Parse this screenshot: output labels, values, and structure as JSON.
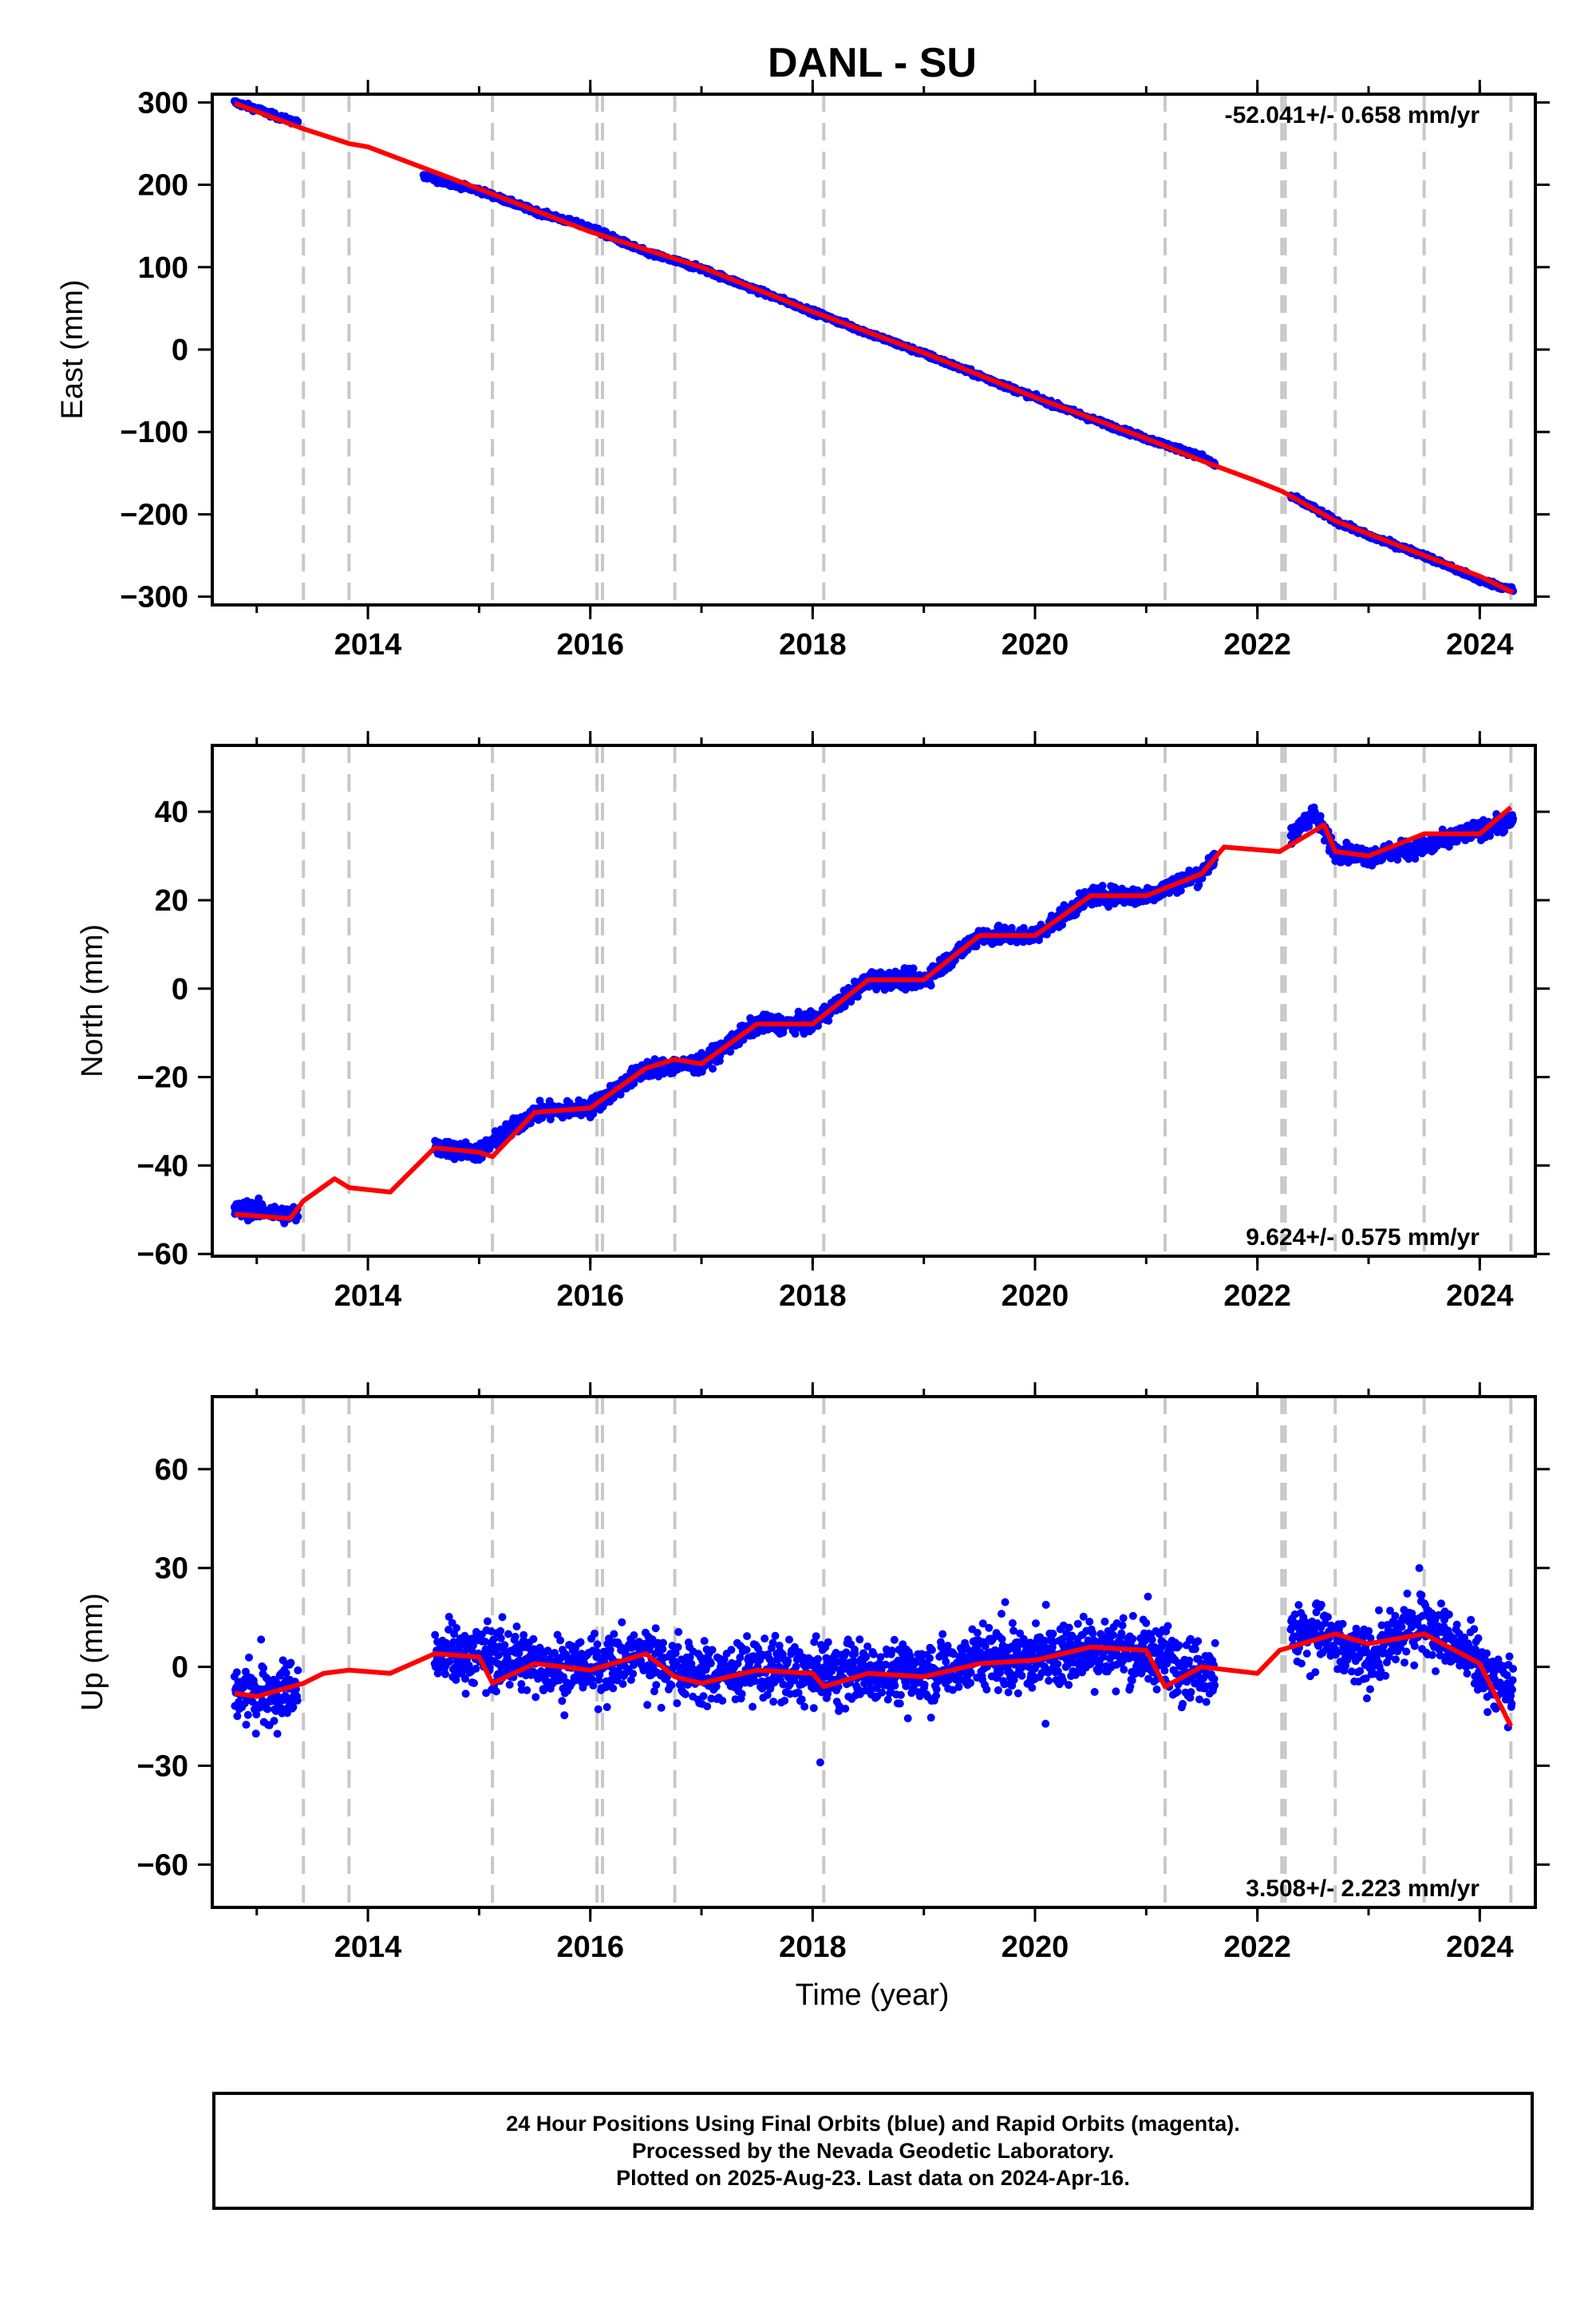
{
  "figure": {
    "title": "DANL - SU",
    "xlabel": "Time (year)",
    "footer": [
      "24 Hour Positions Using Final Orbits (blue) and Rapid Orbits (magenta).",
      "Processed by the Nevada Geodetic Laboratory.",
      "Plotted on 2025-Aug-23. Last data on 2024-Apr-16."
    ]
  },
  "colors": {
    "data": "#0000ff",
    "model": "#ff0000",
    "event_lines": "#c8c8c8",
    "axes": "#000000"
  },
  "chart_data": [
    {
      "type": "scatter",
      "component": "East",
      "ylabel": "East (mm)",
      "xlim": [
        2012.6,
        2024.5
      ],
      "ylim": [
        -310,
        310
      ],
      "xticks": [
        "2014",
        "2016",
        "2018",
        "2020",
        "2022",
        "2024"
      ],
      "yticks": [
        "300",
        "200",
        "100",
        "0",
        "−100",
        "−200",
        "−300"
      ],
      "rate_label": "-52.041+/- 0.658 mm/yr",
      "rate_position": "top-right",
      "event_lines": [
        2013.42,
        2013.83,
        2015.12,
        2016.06,
        2016.11,
        2016.76,
        2018.1,
        2021.17,
        2022.22,
        2022.25,
        2022.7,
        2023.5,
        2024.28
      ],
      "series": [
        {
          "name": "Final Orbits (blue)",
          "segments": [
            {
              "x": [
                2012.8,
                2013.0,
                2013.2,
                2013.37
              ],
              "y": [
                300,
                292,
                282,
                275
              ]
            },
            {
              "x": [
                2014.5,
                2015.0,
                2015.5,
                2016.0,
                2016.5,
                2017.0,
                2017.5,
                2018.0,
                2018.5,
                2019.0,
                2019.5,
                2020.0,
                2020.5,
                2021.0,
                2021.5,
                2021.62
              ],
              "y": [
                210,
                193,
                168,
                148,
                118,
                98,
                72,
                46,
                20,
                -5,
                -32,
                -58,
                -84,
                -108,
                -130,
                -140
              ]
            },
            {
              "x": [
                2022.3,
                2022.5,
                2022.7,
                2023.0,
                2023.5,
                2024.0,
                2024.3
              ],
              "y": [
                -178,
                -192,
                -208,
                -226,
                -250,
                -280,
                -292
              ]
            }
          ]
        },
        {
          "name": "model",
          "x": [
            2012.8,
            2013.42,
            2013.83,
            2014.0,
            2015.0,
            2016.0,
            2017.0,
            2018.0,
            2019.0,
            2020.0,
            2021.0,
            2021.5,
            2022.0,
            2022.22,
            2022.7,
            2023.5,
            2024.0,
            2024.3
          ],
          "y": [
            299,
            268,
            250,
            246,
            195,
            143,
            100,
            46,
            -4,
            -58,
            -108,
            -135,
            -160,
            -172,
            -208,
            -250,
            -275,
            -295
          ]
        }
      ]
    },
    {
      "type": "scatter",
      "component": "North",
      "ylabel": "North (mm)",
      "xlim": [
        2012.6,
        2024.5
      ],
      "ylim": [
        -60.5,
        55
      ],
      "xticks": [
        "2014",
        "2016",
        "2018",
        "2020",
        "2022",
        "2024"
      ],
      "yticks": [
        "40",
        "20",
        "0",
        "−20",
        "−40",
        "−60"
      ],
      "rate_label": "9.624+/- 0.575 mm/yr",
      "rate_position": "bottom-right",
      "event_lines": [
        2013.42,
        2013.83,
        2015.12,
        2016.06,
        2016.11,
        2016.76,
        2018.1,
        2021.17,
        2022.22,
        2022.25,
        2022.7,
        2023.5,
        2024.28
      ],
      "series": [
        {
          "name": "Final Orbits (blue)",
          "segments": [
            {
              "x": [
                2012.8,
                2013.0,
                2013.2,
                2013.37
              ],
              "y": [
                -50,
                -50,
                -51,
                -51
              ]
            },
            {
              "x": [
                2014.6,
                2015.0,
                2015.5,
                2016.0,
                2016.5,
                2017.0,
                2017.5,
                2018.0,
                2018.5,
                2019.0,
                2019.5,
                2020.0,
                2020.5,
                2021.0,
                2021.5,
                2021.62
              ],
              "y": [
                -36,
                -37,
                -28,
                -27,
                -18,
                -17,
                -8,
                -8,
                2,
                2,
                12,
                12,
                21,
                21,
                26,
                30
              ]
            },
            {
              "x": [
                2022.3,
                2022.5,
                2022.7,
                2023.0,
                2023.5,
                2024.0,
                2024.3
              ],
              "y": [
                34,
                40,
                31,
                30,
                32,
                36,
                38
              ]
            }
          ]
        },
        {
          "name": "model",
          "x": [
            2012.8,
            2013.3,
            2013.42,
            2013.7,
            2013.83,
            2014.2,
            2014.6,
            2015.0,
            2015.12,
            2015.5,
            2016.0,
            2016.5,
            2016.76,
            2017.0,
            2017.5,
            2018.0,
            2018.5,
            2019.0,
            2019.5,
            2020.0,
            2020.5,
            2021.0,
            2021.5,
            2021.7,
            2022.2,
            2022.6,
            2022.7,
            2023.0,
            2023.5,
            2024.0,
            2024.28
          ],
          "y": [
            -51,
            -52,
            -48,
            -43,
            -45,
            -46,
            -36,
            -37,
            -38,
            -28,
            -27,
            -18,
            -16,
            -17,
            -8,
            -8,
            2,
            2,
            12,
            12,
            21,
            21,
            26,
            32,
            31,
            37,
            31,
            30,
            35,
            35,
            41
          ]
        }
      ]
    },
    {
      "type": "scatter",
      "component": "Up",
      "ylabel": "Up (mm)",
      "xlim": [
        2012.6,
        2024.5
      ],
      "ylim": [
        -73,
        82
      ],
      "xticks": [
        "2014",
        "2016",
        "2018",
        "2020",
        "2022",
        "2024"
      ],
      "yticks": [
        "60",
        "30",
        "0",
        "−30",
        "−60"
      ],
      "rate_label": "3.508+/- 2.223 mm/yr",
      "rate_position": "bottom-right",
      "event_lines": [
        2013.42,
        2013.83,
        2015.12,
        2016.06,
        2016.11,
        2016.76,
        2018.1,
        2021.17,
        2022.22,
        2022.25,
        2022.7,
        2023.5,
        2024.28
      ],
      "series": [
        {
          "name": "Final Orbits (blue)",
          "segments": [
            {
              "x": [
                2012.8,
                2013.0,
                2013.2,
                2013.37
              ],
              "y": [
                -9,
                -8,
                -7,
                -6
              ]
            },
            {
              "x": [
                2014.6,
                2015.0,
                2015.5,
                2016.0,
                2016.5,
                2017.0,
                2017.5,
                2018.0,
                2018.5,
                2019.0,
                2019.5,
                2020.0,
                2020.5,
                2021.0,
                2021.5,
                2021.62
              ],
              "y": [
                3,
                4,
                1,
                0,
                4,
                -3,
                0,
                -3,
                -1,
                -2,
                3,
                2,
                6,
                4,
                0,
                0
              ]
            },
            {
              "x": [
                2022.3,
                2022.5,
                2022.7,
                2023.0,
                2023.5,
                2024.0,
                2024.3
              ],
              "y": [
                8,
                12,
                6,
                2,
                15,
                0,
                -8
              ]
            }
          ]
        },
        {
          "name": "model",
          "x": [
            2012.8,
            2013.0,
            2013.42,
            2013.6,
            2013.83,
            2014.2,
            2014.6,
            2015.0,
            2015.12,
            2015.5,
            2016.0,
            2016.5,
            2016.76,
            2017.0,
            2017.5,
            2018.0,
            2018.1,
            2018.5,
            2019.0,
            2019.5,
            2020.0,
            2020.5,
            2021.0,
            2021.17,
            2021.5,
            2022.0,
            2022.2,
            2022.5,
            2022.7,
            2023.0,
            2023.5,
            2024.0,
            2024.28
          ],
          "y": [
            -8,
            -9,
            -5,
            -2,
            -1,
            -2,
            4,
            3,
            -5,
            1,
            -1,
            4,
            -3,
            -5,
            -1,
            -2,
            -6,
            -2,
            -3,
            1,
            2,
            6,
            5,
            -6,
            0,
            -2,
            5,
            8,
            10,
            7,
            10,
            1,
            -18
          ]
        }
      ]
    }
  ]
}
